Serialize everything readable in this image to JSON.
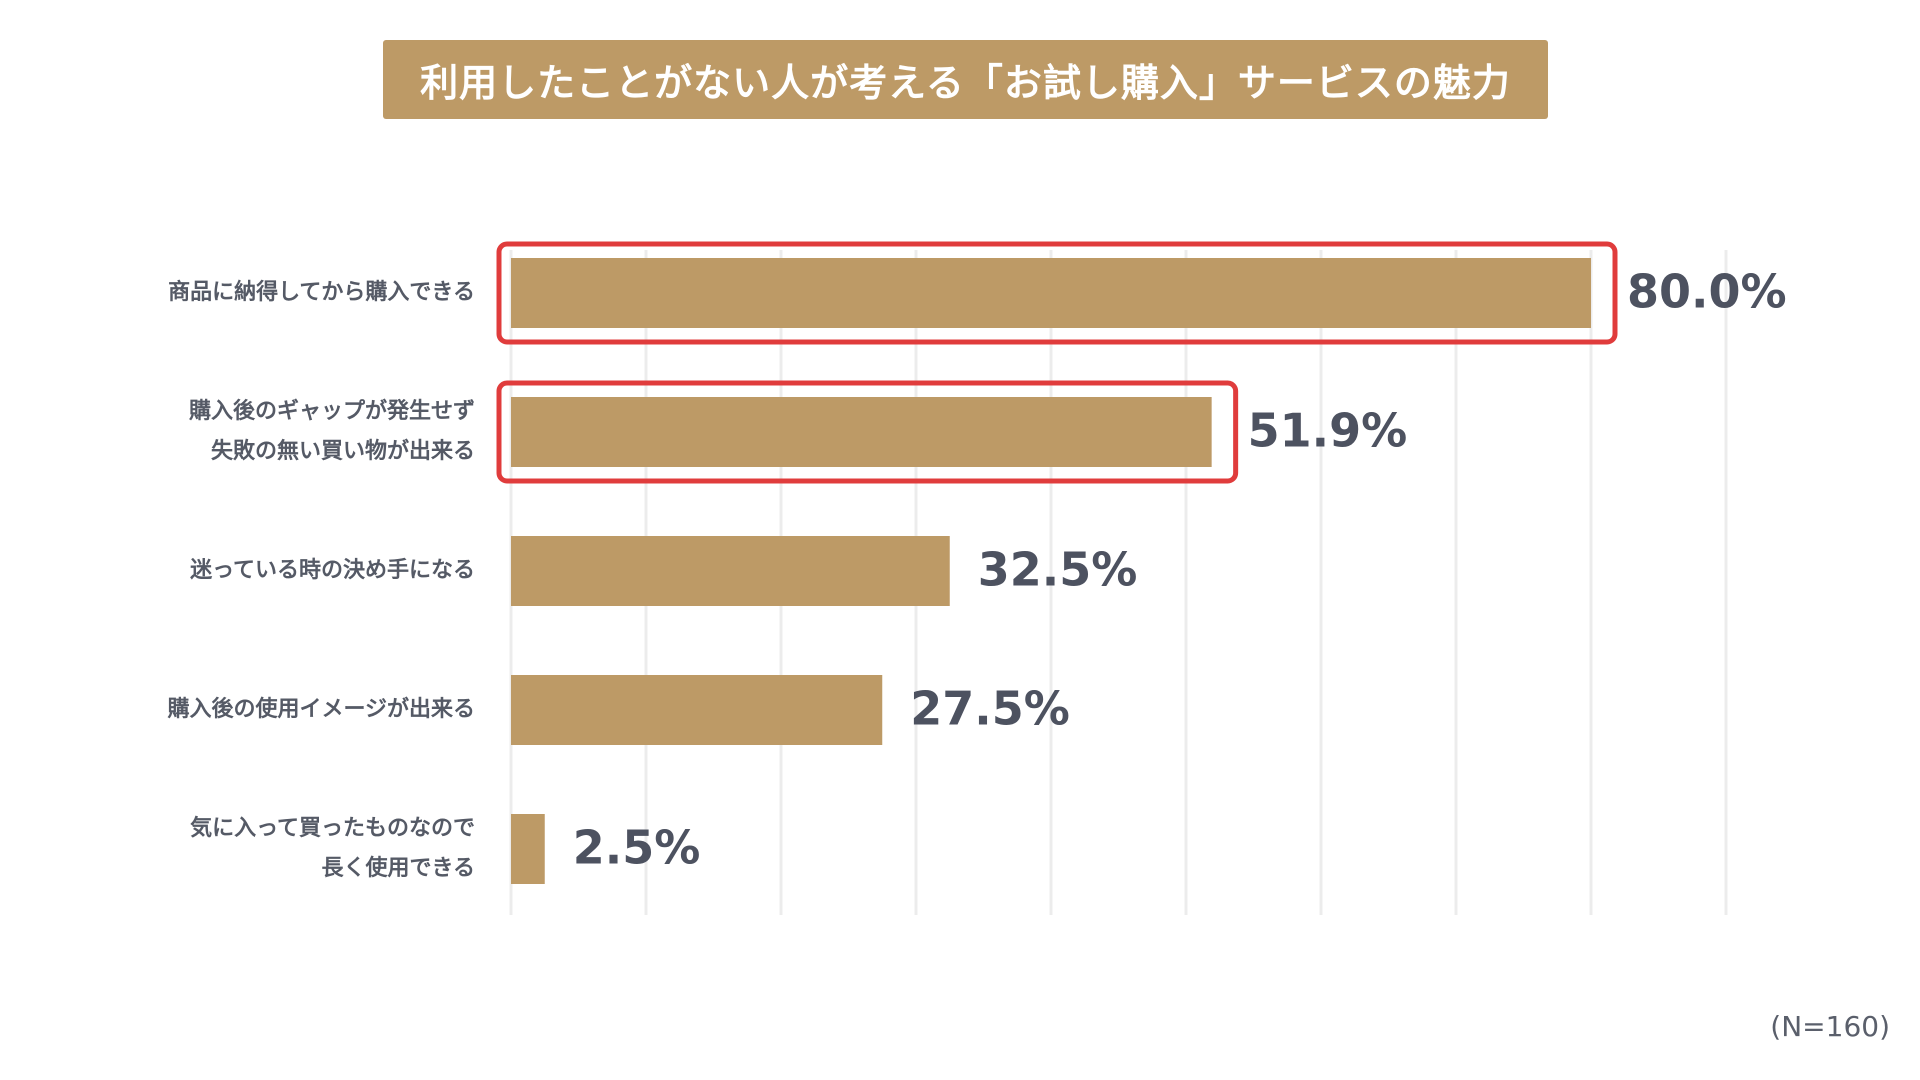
{
  "colors": {
    "bar": "#bd9a66",
    "highlight": "#e03c3c",
    "grid": "#ececec",
    "title_bg": "#bd9a66",
    "text": "#555a66"
  },
  "chart_data": {
    "type": "bar",
    "orientation": "horizontal",
    "title": "利用したことがない人が考える「お試し購入」サービスの魅力",
    "unit": "%",
    "xlim": [
      0,
      90
    ],
    "grid": true,
    "categories": [
      [
        "商品に納得してから購入できる"
      ],
      [
        "購入後のギャップが発生せず",
        "失敗の無い買い物が出来る"
      ],
      [
        "迷っている時の決め手になる"
      ],
      [
        "購入後の使用イメージが出来る"
      ],
      [
        "気に入って買ったものなので",
        "長く使用できる"
      ]
    ],
    "values": [
      80.0,
      51.9,
      32.5,
      27.5,
      2.5
    ],
    "value_labels": [
      "80.0%",
      "51.9%",
      "32.5%",
      "27.5%",
      "2.5%"
    ],
    "highlighted": [
      true,
      true,
      false,
      false,
      false
    ]
  },
  "note": "(N=160)"
}
